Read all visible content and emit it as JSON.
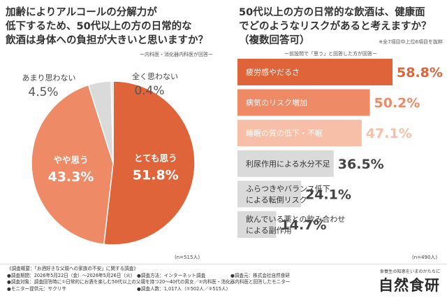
{
  "left": {
    "title_lines": [
      "加齢によりアルコールの分解力が",
      "低下するため、50代以上の方の日常的な",
      "飲酒は身体への負担が大きいと思いますか？"
    ],
    "source": "ー内科医・消化器内科医が回答ー",
    "n_label": "(n=515人)"
  },
  "right": {
    "title_lines": [
      "50代以上の方の日常的な飲酒は、健康面",
      "でどのようなリスクがあると考えますか？",
      "（複数回答可）"
    ],
    "note1": "※全7項目中上位6項目を抜粋",
    "note2": "ー前設問で「思う」と回答した方が回答ー",
    "n_label": "(n=490人)"
  },
  "colors": {
    "orange_dark": "#e0643a",
    "orange_mid": "#ee8a66",
    "orange_light": "#f7bfa8",
    "gray": "#dadada",
    "text": "#3a3a3a"
  },
  "chart_data": [
    {
      "type": "pie",
      "slices": [
        {
          "label": "とても思う",
          "value": 51.8,
          "display": "51.8%"
        },
        {
          "label": "やや思う",
          "value": 43.3,
          "display": "43.3%"
        },
        {
          "label": "あまり思わない",
          "value": 4.5,
          "display": "4.5%"
        },
        {
          "label": "全く思わない",
          "value": 0.4,
          "display": "0.4%"
        }
      ]
    },
    {
      "type": "bar",
      "orientation": "horizontal",
      "categories": [
        [
          "疲労感やだるさ"
        ],
        [
          "病気のリスク増加"
        ],
        [
          "睡眠の質の低下・不眠"
        ],
        [
          "利尿作用による水分不足"
        ],
        [
          "ふらつきやバランス低下",
          "による転倒リスク"
        ],
        [
          "飲んでいる薬との飲み合わせ",
          "による副作用"
        ]
      ],
      "values": [
        58.8,
        50.2,
        47.1,
        36.5,
        24.1,
        14.7
      ],
      "value_labels": [
        "58.8%",
        "50.2%",
        "47.1%",
        "36.5%",
        "24.1%",
        "14.7%"
      ],
      "xlim": [
        0,
        58.8
      ]
    }
  ],
  "footer": {
    "lines": [
      [
        "《調査概要：「お酒好きな父親への家族の不安」に関する調査》"
      ],
      [
        "●調査期間：2026年5月22日（金）～2026年5月26日（火）",
        "●調査方法：インターネット調査",
        "●調査元：株式会社自然食研"
      ],
      [
        "●調査対象：調査回答時に①日常的にお酒を楽しむ50代以上の父親を持つ20～40代の男女／②内科医・消化器内科医と回答したモニター"
      ],
      [
        "●モニター提供元：サクリサ",
        "●調査人数：1,017人（①502人／②515人）"
      ]
    ],
    "brand_tagline": "食養生の知恵をいまのかたちに",
    "brand_name": "自然食研"
  }
}
